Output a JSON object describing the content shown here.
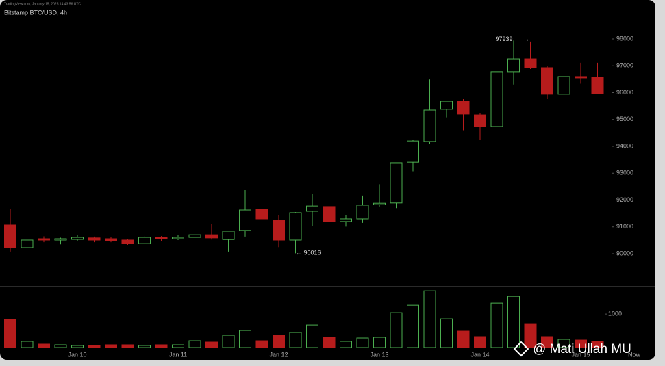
{
  "chart_data": {
    "type": "candlestick",
    "source": "TradingView.com, January 15, 2025 14:43:56 UTC",
    "title": "Bitstamp BTC/USD, 4h",
    "watermark": "@ Mati Ullah MU",
    "up_color": "#4caf50",
    "down_color": "#b71c1c",
    "categories": [
      null,
      null,
      null,
      null,
      "Jan 10",
      null,
      null,
      null,
      null,
      null,
      "Jan 11",
      null,
      null,
      null,
      null,
      null,
      "Jan 12",
      null,
      null,
      null,
      null,
      null,
      "Jan 13",
      null,
      null,
      null,
      null,
      null,
      "Jan 14",
      null,
      null,
      null,
      null,
      null,
      "Jan 15",
      null
    ],
    "x_end_label": "Now",
    "open": [
      91070,
      90230,
      90560,
      90510,
      90535,
      90590,
      90560,
      90510,
      90380,
      90610,
      90560,
      90610,
      90710,
      90530,
      90870,
      91660,
      91250,
      90510,
      91580,
      91760,
      91200,
      91300,
      91830,
      91890,
      93410,
      94180,
      95380,
      95680,
      95170,
      94740,
      96780,
      97260,
      96930,
      95940,
      96600,
      96580
    ],
    "high": [
      91680,
      90610,
      90650,
      90600,
      90690,
      90640,
      90610,
      90560,
      90640,
      90660,
      90690,
      91030,
      91120,
      90840,
      92370,
      92100,
      91450,
      91550,
      92230,
      91930,
      91450,
      92170,
      92590,
      93390,
      94250,
      96490,
      95700,
      95760,
      95250,
      97060,
      97939,
      97900,
      97000,
      96720,
      97110,
      97110
    ],
    "low": [
      90080,
      90030,
      90430,
      90350,
      90480,
      90430,
      90430,
      90330,
      90380,
      90480,
      90510,
      90560,
      90530,
      90080,
      90640,
      91200,
      90250,
      90016,
      91020,
      90940,
      91010,
      91150,
      91760,
      91700,
      93070,
      94080,
      95080,
      94600,
      94250,
      94630,
      96300,
      96880,
      95770,
      95940,
      96330,
      95960
    ],
    "close": [
      90230,
      90510,
      90510,
      90560,
      90610,
      90510,
      90480,
      90380,
      90610,
      90560,
      90610,
      90710,
      90590,
      90840,
      91630,
      91300,
      90510,
      91530,
      91780,
      91200,
      91300,
      91810,
      91880,
      93390,
      94200,
      95350,
      95680,
      95200,
      94740,
      96780,
      97260,
      96930,
      95940,
      96600,
      96550,
      95960
    ],
    "ylim": [
      88800,
      98800
    ],
    "yticks": [
      90000,
      91000,
      92000,
      93000,
      94000,
      95000,
      96000,
      97000,
      98000
    ],
    "annotations": [
      {
        "index": 30,
        "field": "high"
      },
      {
        "index": 17,
        "field": "low"
      }
    ],
    "volume": {
      "values": [
        837,
        184,
        102,
        82,
        61,
        61,
        82,
        82,
        61,
        82,
        82,
        204,
        163,
        367,
        510,
        204,
        367,
        449,
        673,
        306,
        184,
        286,
        306,
        1041,
        1265,
        1694,
        857,
        490,
        327,
        1327,
        1531,
        714,
        327,
        245,
        224,
        184
      ],
      "ylim": [
        0,
        1800
      ],
      "yticks": [
        1000
      ]
    }
  }
}
